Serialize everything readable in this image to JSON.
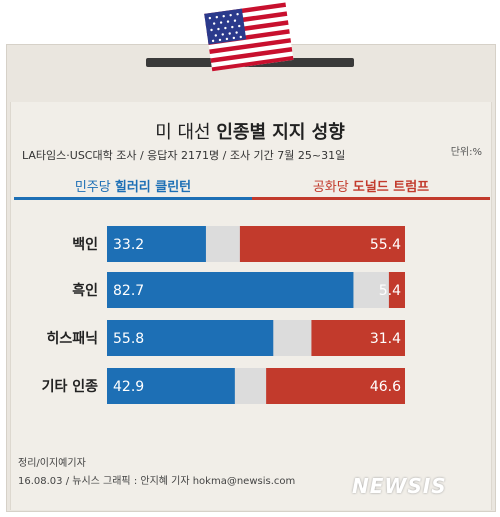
{
  "title_plain": "미 대선 ",
  "title_bold": "인종별 지지 성향",
  "source": "LA타임스·USC대학 조사 / 응답자 2171명 / 조사 기간 7월 25~31일",
  "unit": "단위:%",
  "legend": {
    "dem_prefix": "민주당 ",
    "dem_name": "힐러리 클린턴",
    "rep_prefix": "공화당 ",
    "rep_name": "도널드 트럼프"
  },
  "footer": {
    "editor": "정리/이지예기자",
    "credit": "16.08.03 / 뉴시스 그래픽 : 안지혜 기자 hokma@newsis.com"
  },
  "logo_text": "NEWSIS",
  "colors": {
    "dem": "#1d6fb5",
    "rep": "#c23a2c",
    "track": "#dcdcdc"
  },
  "chart_data": {
    "type": "bar",
    "categories": [
      "백인",
      "흑인",
      "히스패닉",
      "기타 인종"
    ],
    "series": [
      {
        "name": "민주당 힐러리 클린턴",
        "values": [
          33.2,
          82.7,
          55.8,
          42.9
        ]
      },
      {
        "name": "공화당 도널드 트럼프",
        "values": [
          55.4,
          5.4,
          31.4,
          46.6
        ]
      }
    ],
    "xlim": [
      0,
      100
    ],
    "grid": false,
    "legend_position": "top"
  }
}
